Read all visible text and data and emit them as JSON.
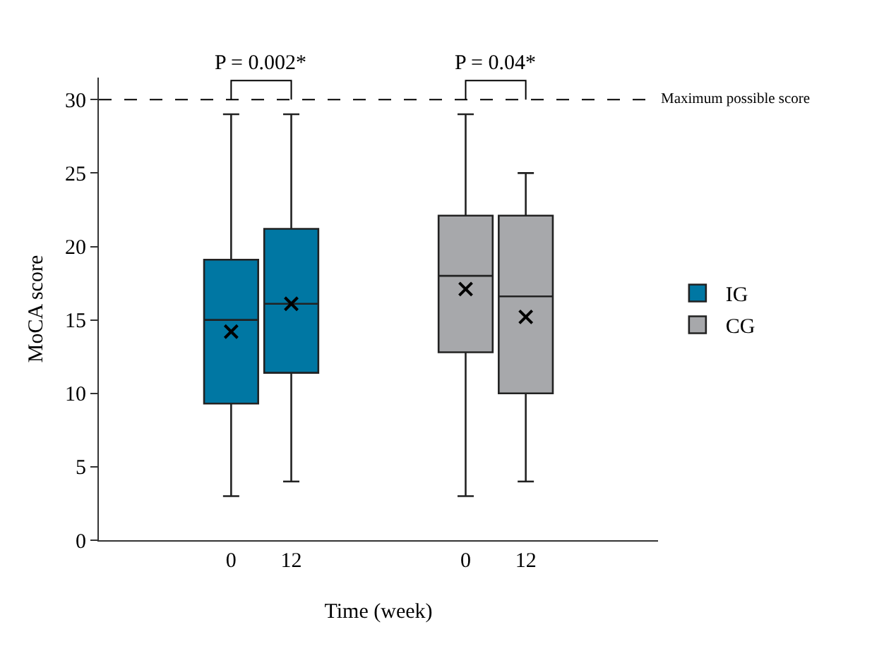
{
  "chart_data": {
    "type": "box",
    "xlabel": "Time (week)",
    "ylabel": "MoCA score",
    "categories": [
      "0",
      "12",
      "0",
      "12"
    ],
    "series": [
      {
        "name": "IG",
        "color": "#0077a3",
        "boxes": [
          {
            "low": 3,
            "q1": 9.3,
            "median": 15,
            "q3": 19.1,
            "high": 29,
            "mean": 14.2
          },
          {
            "low": 4,
            "q1": 11.4,
            "median": 16.1,
            "q3": 21.2,
            "high": 29,
            "mean": 16.1
          },
          null,
          null
        ]
      },
      {
        "name": "CG",
        "color": "#a7a8ab",
        "boxes": [
          null,
          null,
          {
            "low": 3,
            "q1": 12.8,
            "median": 18,
            "q3": 22.1,
            "high": 29,
            "mean": 17.1
          },
          {
            "low": 4,
            "q1": 10,
            "median": 16.6,
            "q3": 22.1,
            "high": 25,
            "mean": 15.2
          }
        ]
      }
    ],
    "ylim": [
      0,
      31.5
    ],
    "yticks": [
      0,
      5,
      10,
      15,
      20,
      25,
      30
    ],
    "ref_lines": [
      {
        "axis": "y",
        "value": 30,
        "label": "Maximum possible score",
        "line_style": "dashed",
        "color": "#000000"
      }
    ],
    "annotations": [
      "P = 0.002*",
      "P = 0.04*"
    ],
    "marker": "cross",
    "grid": false,
    "legend": "right"
  }
}
